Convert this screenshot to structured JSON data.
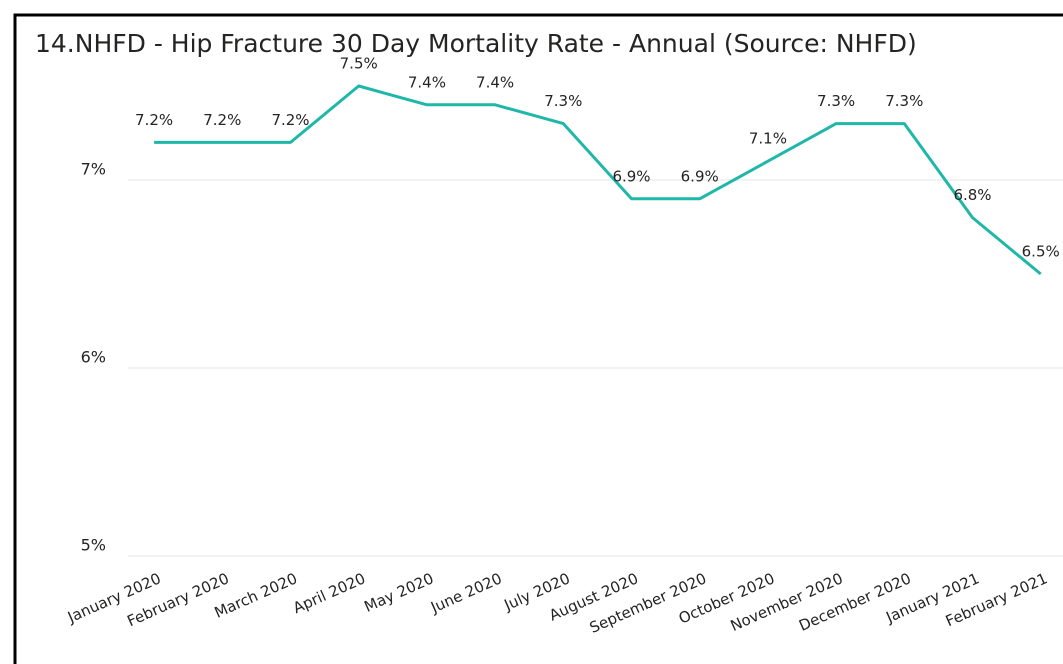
{
  "chart_data": {
    "type": "line",
    "title": "14.NHFD - Hip Fracture 30 Day Mortality Rate - Annual (Source: NHFD)",
    "categories": [
      "January 2020",
      "February 2020",
      "March 2020",
      "April 2020",
      "May 2020",
      "June 2020",
      "July 2020",
      "August 2020",
      "September 2020",
      "October 2020",
      "November 2020",
      "December 2020",
      "January 2021",
      "February 2021"
    ],
    "series": [
      {
        "name": "Mortality Rate",
        "color": "#1fb7a8",
        "values": [
          7.2,
          7.2,
          7.2,
          7.5,
          7.4,
          7.4,
          7.3,
          6.9,
          6.9,
          7.1,
          7.3,
          7.3,
          6.8,
          6.5
        ],
        "value_labels": [
          "7.2%",
          "7.2%",
          "7.2%",
          "7.5%",
          "7.4%",
          "7.4%",
          "7.3%",
          "6.9%",
          "6.9%",
          "7.1%",
          "7.3%",
          "7.3%",
          "6.8%",
          "6.5%"
        ]
      }
    ],
    "ylim": [
      5,
      7.5
    ],
    "yticks": [
      {
        "value": 5,
        "label": "5%"
      },
      {
        "value": 6,
        "label": "6%"
      },
      {
        "value": 7,
        "label": "7%"
      }
    ],
    "grid": true
  }
}
